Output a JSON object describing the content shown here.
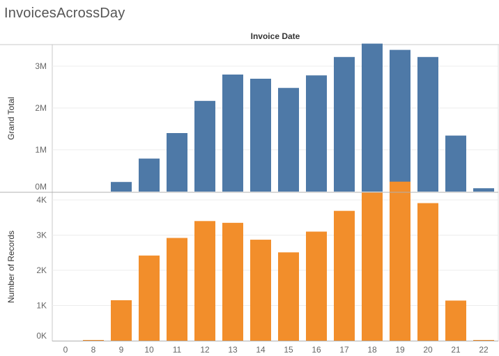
{
  "title": "InvoicesAcrossDay",
  "column_header": "Invoice Date",
  "colors": {
    "top": "#4e79a7",
    "bottom": "#f28e2b"
  },
  "chart_data": {
    "type": "bar",
    "categories": [
      "0",
      "8",
      "9",
      "10",
      "11",
      "12",
      "13",
      "14",
      "15",
      "16",
      "17",
      "18",
      "19",
      "20",
      "21",
      "22"
    ],
    "xlabel": "Invoice Date",
    "panels": [
      {
        "ylabel": "Grand Total",
        "ylim": [
          0,
          3700000
        ],
        "ticks": [
          {
            "value": 0,
            "label": "0M"
          },
          {
            "value": 1000000,
            "label": "1M"
          },
          {
            "value": 2000000,
            "label": "2M"
          },
          {
            "value": 3000000,
            "label": "3M"
          }
        ],
        "values": [
          0,
          0,
          230000,
          790000,
          1400000,
          2170000,
          2800000,
          2700000,
          2480000,
          2780000,
          3220000,
          3540000,
          3390000,
          3220000,
          1340000,
          80000
        ]
      },
      {
        "ylabel": "Number of Records",
        "ylim": [
          0,
          4550
        ],
        "ticks": [
          {
            "value": 0,
            "label": "0K"
          },
          {
            "value": 1000,
            "label": "1K"
          },
          {
            "value": 2000,
            "label": "2K"
          },
          {
            "value": 3000,
            "label": "3K"
          },
          {
            "value": 4000,
            "label": "4K"
          }
        ],
        "values": [
          0,
          20,
          1150,
          2420,
          2920,
          3400,
          3350,
          2870,
          2510,
          3100,
          3690,
          4220,
          4520,
          3910,
          1140,
          20
        ]
      }
    ],
    "grid": true
  }
}
